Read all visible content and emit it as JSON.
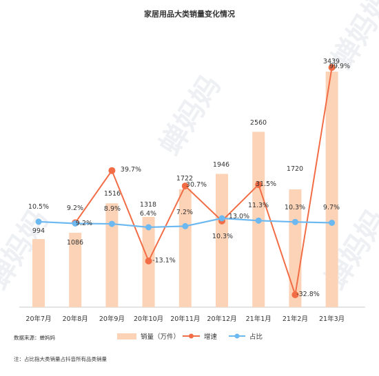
{
  "page": {
    "title": "家居用品大类销量变化情况",
    "source": "数据来源：蝉妈妈",
    "note": "注：占比指大类销量占抖音所有品类销量",
    "watermark": "蝉妈妈"
  },
  "chart_data": {
    "type": "bar",
    "title": "家居用品大类销量变化情况",
    "categories": [
      "20年7月",
      "20年8月",
      "20年9月",
      "20年10月",
      "20年11月",
      "20年12月",
      "21年1月",
      "21年2月",
      "21年3月"
    ],
    "series": [
      {
        "name": "销量（万件）",
        "type": "bar",
        "color": "#fcd3b6",
        "values": [
          994,
          1086,
          1516,
          1318,
          1722,
          1946,
          2560,
          1720,
          3439
        ],
        "labels": [
          "994",
          "1086",
          "1516",
          "1318",
          "1722",
          "1946",
          "2560",
          "1720",
          "3439"
        ]
      },
      {
        "name": "增速",
        "type": "line",
        "color": "#f26d45",
        "values": [
          null,
          9.2,
          39.7,
          -13.1,
          30.7,
          10.3,
          31.5,
          -32.8,
          99.9
        ],
        "labels": [
          "",
          "9.2%",
          "39.7%",
          "-13.1%",
          "30.7%",
          "10.3%",
          "31.5%",
          "-32.8%",
          "99.9%"
        ]
      },
      {
        "name": "占比",
        "type": "line",
        "color": "#6cb8f0",
        "values": [
          10.5,
          9.2,
          8.9,
          6.4,
          7.2,
          13.0,
          11.3,
          10.3,
          9.7
        ],
        "labels": [
          "10.5%",
          "9.2%",
          "8.9%",
          "6.4%",
          "7.2%",
          "13.0%",
          "11.3%",
          "10.3%",
          "9.7%"
        ]
      }
    ],
    "legend_position": "bottom",
    "grid": false
  }
}
